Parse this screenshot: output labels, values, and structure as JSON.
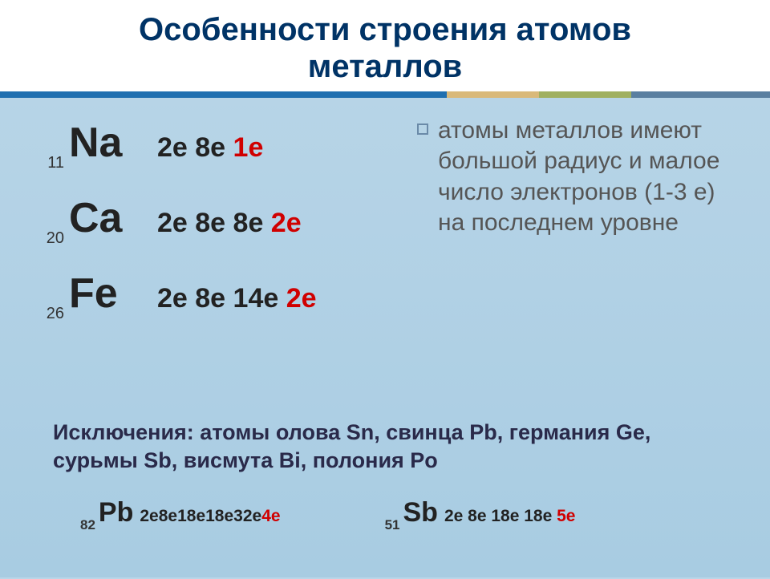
{
  "title_line1": "Особенности строения атомов",
  "title_line2": "металлов",
  "divider_colors": {
    "blue": "#1f6fb0",
    "tan": "#d9b97a",
    "olive": "#a0b060",
    "steel": "#5a7fa0"
  },
  "elements": [
    {
      "z": "11",
      "symbol": "Na",
      "config_black": "2е 8е ",
      "config_red": "1е"
    },
    {
      "z": "20",
      "symbol": "Ca",
      "config_black": "2е 8е 8е ",
      "config_red": "2е"
    },
    {
      "z": "26",
      "symbol": "Fe",
      "config_black": "2е 8е 14е ",
      "config_red": "2е"
    }
  ],
  "bullet_text": "атомы металлов имеют большой радиус и малое число электронов (1-3 е)  на последнем уровне",
  "exceptions_label": "Исключения: ",
  "exceptions_body": "атомы олова Sn, свинца Pb, германия Ge, сурьмы Sb, висмута Bi, полония Po",
  "bottom": [
    {
      "z": "82",
      "symbol": "Pb",
      "config_black": "2е8е18е18е32е",
      "config_red": "4е"
    },
    {
      "z": "51",
      "symbol": "Sb",
      "config_black": "2е 8е 18е 18е ",
      "config_red": "5е"
    }
  ],
  "colors": {
    "title": "#003366",
    "text_black": "#222222",
    "text_red": "#d00000",
    "bullet_border": "#6a8aa8",
    "bullet_text": "#555555",
    "exceptions_text": "#2a2a4a",
    "bg_top": "#bad6e8",
    "bg_bottom": "#a8cce2"
  },
  "fontsizes": {
    "title": 40,
    "atomic_num": 20,
    "symbol": 52,
    "config": 34,
    "bullet": 30,
    "exceptions": 27,
    "bottom_sym": 34,
    "bottom_conf": 21
  }
}
